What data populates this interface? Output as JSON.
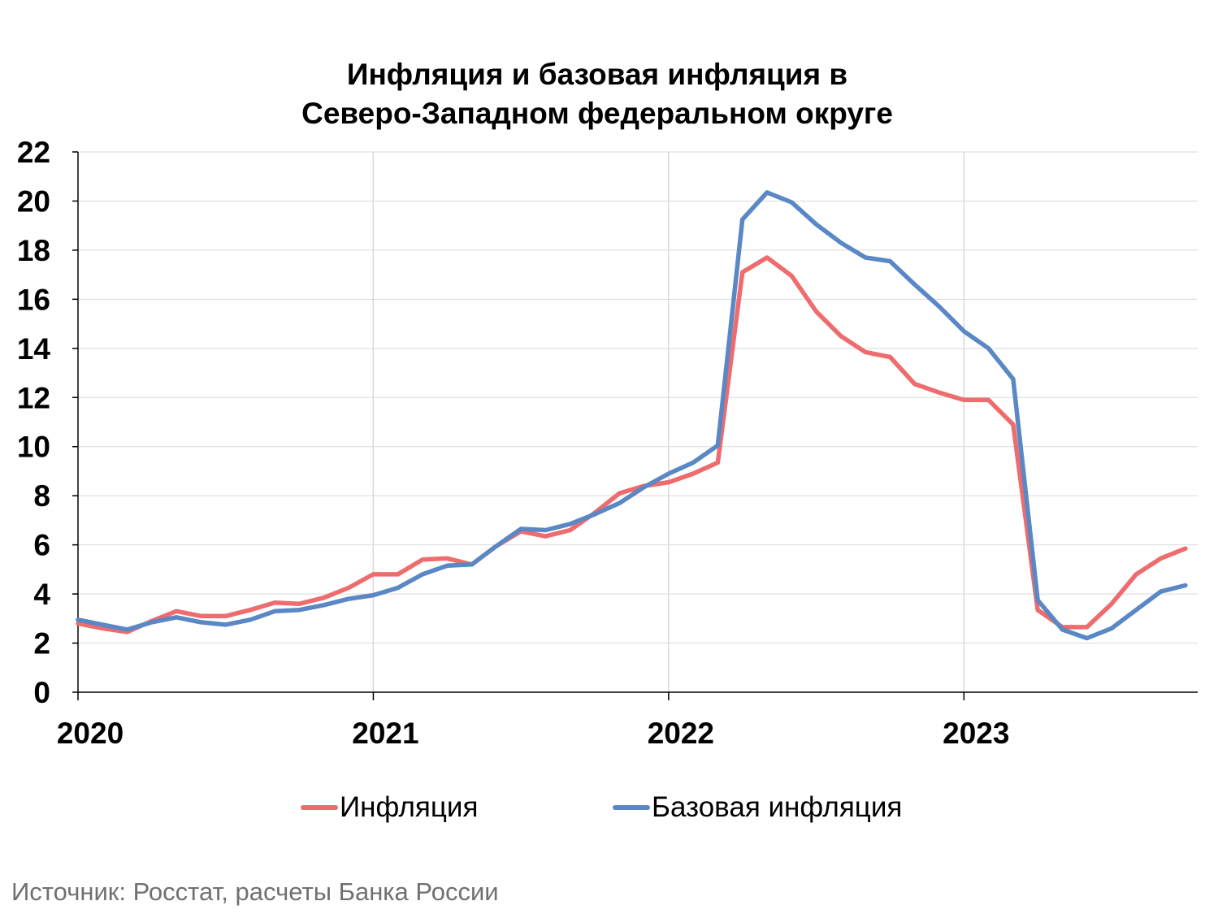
{
  "chart_data": {
    "type": "line",
    "title_lines": [
      "Инфляция и базовая инфляция в",
      "Северо-Западном федеральном округе"
    ],
    "ylim": [
      0,
      22
    ],
    "yticks": [
      "0",
      "2",
      "4",
      "6",
      "8",
      "10",
      "12",
      "14",
      "16",
      "18",
      "20",
      "22"
    ],
    "x_year_labels": [
      "2020",
      "2021",
      "2022",
      "2023"
    ],
    "x_start": "2020-01",
    "grid": "horizontal and yearly vertical lines",
    "legend_position": "bottom",
    "series": [
      {
        "name": "Инфляция",
        "color": "#EE6B6E",
        "values": [
          2.8,
          2.6,
          2.45,
          2.9,
          3.3,
          3.1,
          3.1,
          3.35,
          3.65,
          3.6,
          3.85,
          4.25,
          4.8,
          4.8,
          5.4,
          5.45,
          5.2,
          5.95,
          6.55,
          6.35,
          6.6,
          7.3,
          8.1,
          8.4,
          8.55,
          8.9,
          9.35,
          17.1,
          17.7,
          16.95,
          15.5,
          14.5,
          13.85,
          13.65,
          12.55,
          12.2,
          11.9,
          11.9,
          10.9,
          3.35,
          2.65,
          2.65,
          3.6,
          4.8,
          5.45,
          5.85
        ]
      },
      {
        "name": "Базовая инфляция",
        "color": "#5A88C5",
        "values": [
          2.95,
          2.75,
          2.55,
          2.85,
          3.05,
          2.85,
          2.75,
          2.95,
          3.3,
          3.35,
          3.55,
          3.8,
          3.95,
          4.25,
          4.8,
          5.15,
          5.2,
          5.95,
          6.65,
          6.6,
          6.85,
          7.25,
          7.7,
          8.35,
          8.9,
          9.35,
          10.05,
          19.25,
          20.35,
          19.95,
          19.05,
          18.3,
          17.7,
          17.55,
          16.6,
          15.7,
          14.7,
          14.0,
          12.75,
          3.75,
          2.55,
          2.2,
          2.6,
          3.35,
          4.1,
          4.35
        ]
      }
    ]
  },
  "source_note": "Источник: Росстат, расчеты Банка России"
}
